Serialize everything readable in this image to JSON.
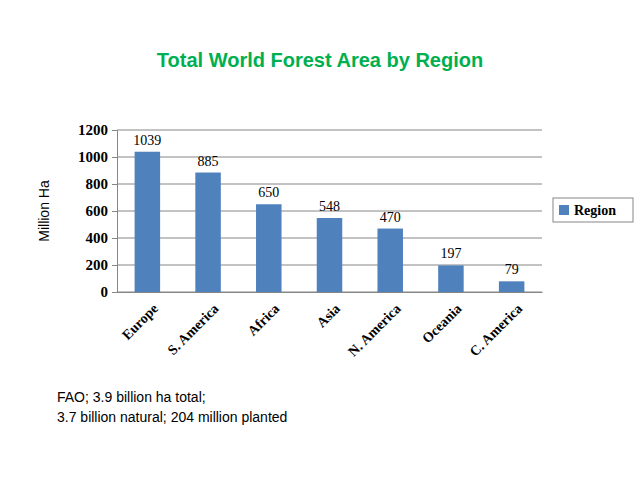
{
  "chart_data": {
    "type": "bar",
    "title": "Total World Forest Area by Region",
    "categories": [
      "Europe",
      "S. America",
      "Africa",
      "Asia",
      "N. America",
      "Oceania",
      "C. America"
    ],
    "series": [
      {
        "name": "Region",
        "color": "#4f81bd",
        "values": [
          1039,
          885,
          650,
          548,
          470,
          197,
          79
        ]
      }
    ],
    "ylabel": "Million Ha",
    "ylim": [
      0,
      1200
    ],
    "yticks": [
      0,
      200,
      400,
      600,
      800,
      1000,
      1200
    ],
    "grid": true,
    "data_labels": true,
    "legend": "right",
    "annotations": [
      "FAO; 3.9 billion ha total;",
      "3.7 billion natural; 204 million planted"
    ]
  }
}
